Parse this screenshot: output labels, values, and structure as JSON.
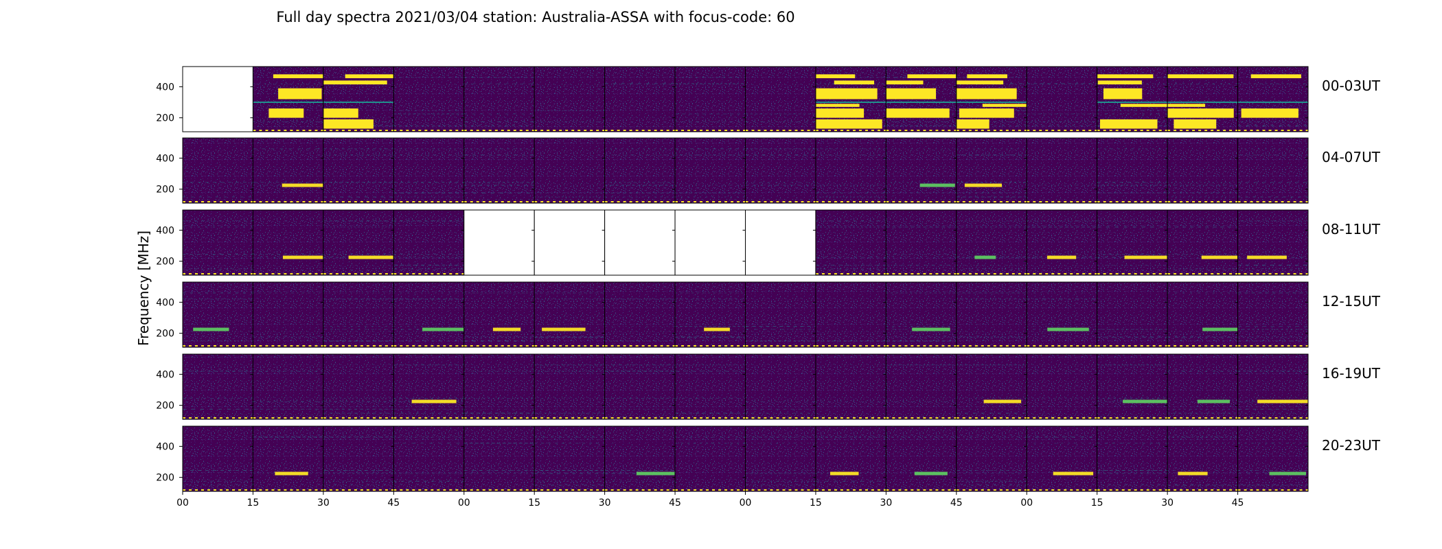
{
  "chart_data": {
    "type": "heatmap",
    "title": "Full day spectra 2021/03/04 station: Australia-ASSA with focus-code: 60",
    "ylabel": "Frequency [MHz]",
    "xlabel": "",
    "yticks": [
      200,
      400
    ],
    "ylim": [
      110,
      530
    ],
    "xticks": [
      "00",
      "15",
      "30",
      "45",
      "00",
      "15",
      "30",
      "45",
      "00",
      "15",
      "30",
      "45",
      "00",
      "15",
      "30",
      "45"
    ],
    "minutes_per_panel": 15,
    "panels_per_row": 16,
    "colormap": "viridis",
    "colors": {
      "low": "#440154",
      "mid": "#21918c",
      "high": "#fde725",
      "missing": "#ffffff"
    },
    "rows": [
      {
        "label": "00-03UT",
        "missing_panels": [
          0
        ],
        "saturated_panels": [
          1,
          2,
          9,
          10,
          11,
          13,
          14,
          15
        ]
      },
      {
        "label": "04-07UT",
        "missing_panels": [],
        "saturated_panels": []
      },
      {
        "label": "08-11UT",
        "missing_panels": [
          4,
          5,
          6,
          7,
          8
        ],
        "saturated_panels": []
      },
      {
        "label": "12-15UT",
        "missing_panels": [],
        "saturated_panels": []
      },
      {
        "label": "16-19UT",
        "missing_panels": [],
        "saturated_panels": []
      },
      {
        "label": "20-23UT",
        "missing_panels": [],
        "saturated_panels": []
      }
    ],
    "grid": false,
    "legend": "none"
  }
}
